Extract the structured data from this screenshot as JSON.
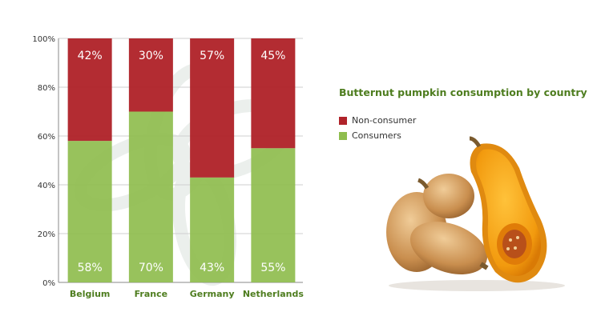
{
  "chart_data": {
    "type": "bar",
    "stacked": true,
    "title": "Butternut pumpkin consumption by country",
    "categories": [
      "Belgium",
      "France",
      "Germany",
      "Netherlands"
    ],
    "series": [
      {
        "name": "Non-consumer",
        "values": [
          42,
          30,
          57,
          45
        ],
        "labels": [
          "42%",
          "30%",
          "57%",
          "45%"
        ],
        "color": "#b0232a"
      },
      {
        "name": "Consumers",
        "values": [
          58,
          70,
          43,
          55
        ],
        "labels": [
          "58%",
          "70%",
          "43%",
          "55%"
        ],
        "color": "#8fbd4e"
      }
    ],
    "ylim": [
      0,
      100
    ],
    "yticks": [
      "0%",
      "20%",
      "40%",
      "60%",
      "80%",
      "100%"
    ],
    "grid": true,
    "legend_position": "right",
    "colors": {
      "category_label": "#4e7d1f",
      "title": "#4e7d1f",
      "bar_label": "#ffffff",
      "grid": "#cfcfcf"
    }
  }
}
